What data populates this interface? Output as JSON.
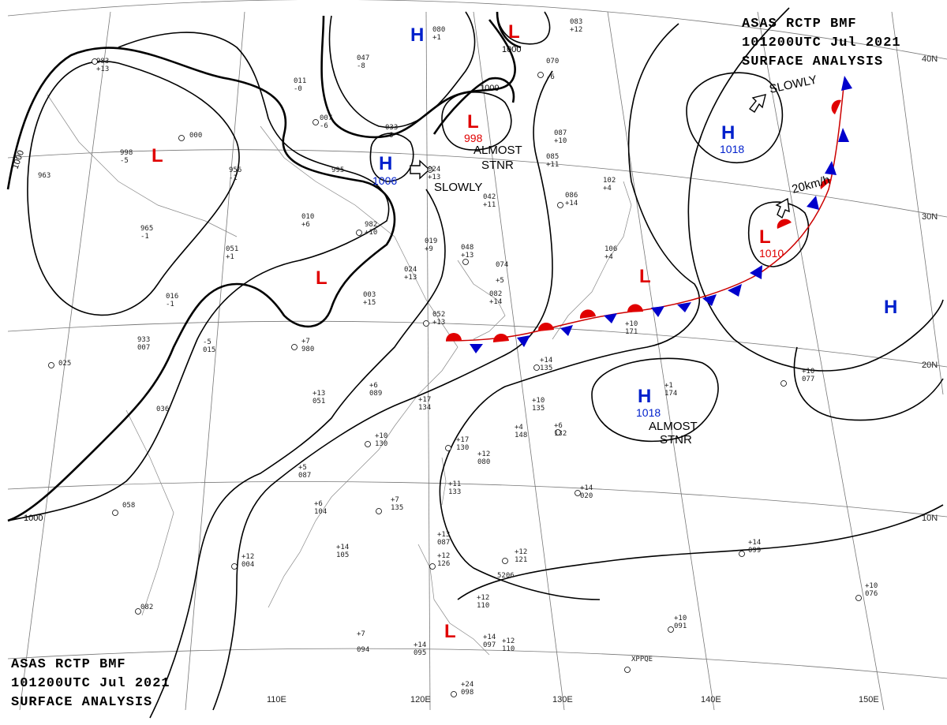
{
  "header_top": {
    "line1": "ASAS    RCTP    BMF",
    "line2": "101200UTC    Jul    2021",
    "line3": "SURFACE  ANALYSIS"
  },
  "header_bottom": {
    "line1": "ASAS    RCTP    BMF",
    "line2": "101200UTC    Jul    2021",
    "line3": "SURFACE  ANALYSIS"
  },
  "lat_labels": [
    "40N",
    "30N",
    "20N",
    "10N"
  ],
  "lon_labels": [
    "110E",
    "120E",
    "130E",
    "140E",
    "150E"
  ],
  "pressure_systems": [
    {
      "type": "L",
      "pressure": ""
    },
    {
      "type": "L",
      "pressure": ""
    },
    {
      "type": "L",
      "pressure": ""
    },
    {
      "type": "L",
      "pressure": "998"
    },
    {
      "type": "L",
      "pressure": "1010"
    },
    {
      "type": "L",
      "pressure": ""
    },
    {
      "type": "L",
      "pressure": ""
    },
    {
      "type": "H",
      "pressure": ""
    },
    {
      "type": "H",
      "pressure": "1006"
    },
    {
      "type": "H",
      "pressure": "1018"
    },
    {
      "type": "H",
      "pressure": "1018"
    },
    {
      "type": "H",
      "pressure": ""
    }
  ],
  "movement_labels": [
    "SLOWLY",
    "ALMOST",
    "STNR",
    "SLOWLY",
    "20km/h",
    "ALMOST",
    "STNR"
  ],
  "isobar_labels": [
    "1000",
    "1000",
    "1000",
    "1000"
  ],
  "station_labels": [
    "080",
    "+1",
    "083",
    "+12",
    "983",
    "+13",
    "047",
    "-8",
    "011",
    "-0",
    "007",
    "-6",
    "033",
    "-9",
    "000",
    "998",
    "-5",
    "995",
    "956",
    "-1",
    "963",
    "010",
    "+6",
    "965",
    "-1",
    "982",
    "+10",
    "051",
    "+1",
    "024",
    "+13",
    "019",
    "+9",
    "048",
    "+13",
    "024",
    "+13",
    "042",
    "+11",
    "070",
    "-6",
    "087",
    "+10",
    "085",
    "+11",
    "086",
    "+14",
    "102",
    "+4",
    "106",
    "+4",
    "074",
    "+5",
    "003",
    "+15",
    "082",
    "+14",
    "052",
    "+13",
    "016",
    "-1",
    "933",
    "007",
    "-5",
    "015",
    "+7",
    "980",
    "025",
    "036",
    "+13",
    "051",
    "+6",
    "089",
    "+17",
    "134",
    "+10",
    "135",
    "+4",
    "148",
    "+6",
    "132",
    "+14",
    "135",
    "+10",
    "171",
    "+1",
    "174",
    "+10",
    "077",
    "+10",
    "130",
    "+17",
    "130",
    "+12",
    "080",
    "+5",
    "087",
    "+6",
    "104",
    "+7",
    "135",
    "+11",
    "133",
    "+14",
    "020",
    "058",
    "+12",
    "004",
    "+14",
    "105",
    "+13",
    "087",
    "+12",
    "126",
    "+12",
    "121",
    "+14",
    "099",
    "+12",
    "110",
    "+10",
    "076",
    "082",
    "+7",
    "094",
    "+14",
    "095",
    "+14",
    "097",
    "+12",
    "110",
    "+10",
    "091",
    "+24",
    "098",
    "XPPQE",
    "5206"
  ]
}
